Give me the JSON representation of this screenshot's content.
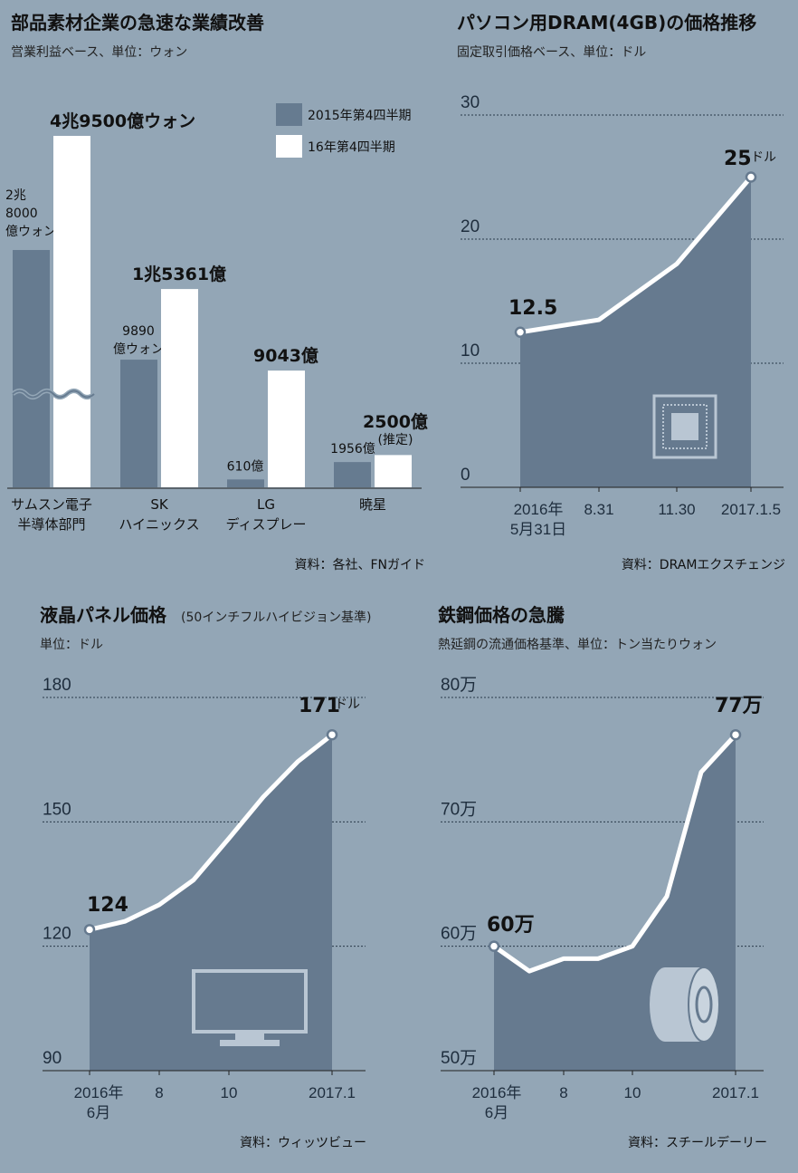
{
  "chart_data": [
    {
      "type": "bar",
      "title": "部品素材企業の急速な業績改善",
      "subtitle": "営業利益ベース、単位：ウォン",
      "unit": "億ウォン",
      "legend": [
        "2015年第4四半期",
        "16年第4四半期"
      ],
      "legend_placement": "top-right",
      "categories": [
        [
          "サムスン電子",
          "半導体部門"
        ],
        [
          "SK",
          "ハイニックス"
        ],
        [
          "LG",
          "ディスプレー"
        ],
        [
          "暁星"
        ]
      ],
      "series": [
        {
          "name": "2015年第4四半期",
          "values": [
            28000,
            9890,
            610,
            1956
          ],
          "color": "#667b90"
        },
        {
          "name": "16年第4四半期",
          "values": [
            49500,
            15361,
            9043,
            2500
          ],
          "color": "#ffffff"
        }
      ],
      "data_labels": [
        [
          [
            "2兆",
            "8000",
            "億ウォン"
          ],
          [
            "9890",
            "億ウォン"
          ],
          [
            "610億"
          ],
          [
            "1956億"
          ]
        ],
        [
          [
            "4兆9500億ウォン"
          ],
          [
            "1兆5361億"
          ],
          [
            "9043億"
          ],
          [
            "2500億",
            "(推定)"
          ]
        ]
      ],
      "axis_break": true,
      "grid": false,
      "source": "資料：各社、FNガイド"
    },
    {
      "type": "area",
      "title": "パソコン用DRAM(4GB)の価格推移",
      "subtitle": "固定取引価格ベース、単位：ドル",
      "x": [
        "2016-05-31",
        "2016-08-31",
        "2016-11-30",
        "2017-01-05"
      ],
      "x_tick_labels": [
        [
          "2016年",
          "5月31日"
        ],
        [
          "8.31"
        ],
        [
          "11.30"
        ],
        [
          "2017.1.5"
        ]
      ],
      "values": [
        12.5,
        13.5,
        18,
        25
      ],
      "y_ticks": [
        "0",
        "10",
        "20",
        "30"
      ],
      "ylim": [
        0,
        30
      ],
      "grid": true,
      "annotations": [
        {
          "text": "12.5"
        },
        {
          "text": "25",
          "unit": "ドル"
        }
      ],
      "icon": "memory-chip-icon",
      "color": "#667a8f",
      "source": "資料：DRAMエクスチェンジ"
    },
    {
      "type": "area",
      "title": "液晶パネル価格",
      "title_note": "(50インチフルハイビジョン基準)",
      "subtitle": "単位：ドル",
      "x": [
        "2016-06",
        "2016-07",
        "2016-08",
        "2016-09",
        "2016-10",
        "2016-11",
        "2016-12",
        "2017-01"
      ],
      "x_tick_labels": [
        [
          "2016年",
          "6月"
        ],
        [
          "8"
        ],
        [
          "10"
        ],
        [
          "2017.1"
        ]
      ],
      "values": [
        124,
        126,
        130,
        136,
        146,
        156,
        164.5,
        171
      ],
      "y_ticks": [
        "90",
        "120",
        "150",
        "180"
      ],
      "ylim": [
        90,
        180
      ],
      "grid": true,
      "annotations": [
        {
          "text": "124"
        },
        {
          "text": "171",
          "unit": "ドル"
        }
      ],
      "icon": "tv-icon",
      "color": "#667a8f",
      "source": "資料：ウィッツビュー"
    },
    {
      "type": "area",
      "title": "鉄鋼価格の急騰",
      "subtitle": "熱延鋼の流通価格基準、単位：トン当たりウォン",
      "x": [
        "2016-06",
        "2016-07",
        "2016-08",
        "2016-09",
        "2016-10",
        "2016-11",
        "2016-12",
        "2017-01"
      ],
      "x_tick_labels": [
        [
          "2016年",
          "6月"
        ],
        [
          "8"
        ],
        [
          "10"
        ],
        [
          "2017.1"
        ]
      ],
      "values": [
        60,
        58,
        59,
        59,
        60,
        64,
        74,
        77
      ],
      "y_ticks": [
        "50万",
        "60万",
        "70万",
        "80万"
      ],
      "ylim": [
        50,
        80
      ],
      "grid": true,
      "annotations": [
        {
          "text": "60万"
        },
        {
          "text": "77万"
        }
      ],
      "icon": "steel-coil-icon",
      "color": "#667a8f",
      "source": "資料：スチールデーリー"
    }
  ]
}
